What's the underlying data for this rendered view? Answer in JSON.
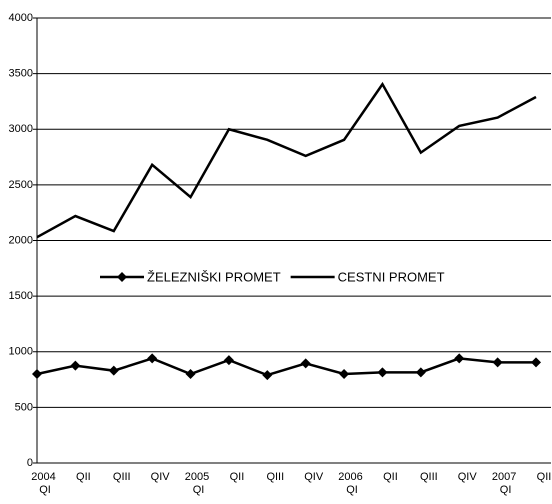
{
  "chart_data": {
    "type": "line",
    "categories": [
      "2004 QI",
      "QII",
      "QIII",
      "QIV",
      "2005 QI",
      "QII",
      "QIII",
      "QIV",
      "2006 QI",
      "QII",
      "QIII",
      "QIV",
      "2007 QI",
      "QII"
    ],
    "series": [
      {
        "name": "ŽELEZNIŠKI PROMET",
        "color": "#000000",
        "marker": "diamond",
        "values": [
          800,
          875,
          830,
          940,
          800,
          925,
          790,
          895,
          800,
          815,
          815,
          940,
          905,
          905
        ]
      },
      {
        "name": "CESTNI PROMET",
        "color": "#000000",
        "values": [
          2030,
          2220,
          2085,
          2680,
          2390,
          3000,
          2905,
          2760,
          2905,
          3405,
          2790,
          3030,
          3105,
          3290
        ]
      }
    ],
    "ylim": [
      0,
      4000
    ],
    "yticks": [
      0,
      500,
      1000,
      1500,
      2000,
      2500,
      3000,
      3500,
      4000
    ],
    "grid": true,
    "legend": "center"
  }
}
